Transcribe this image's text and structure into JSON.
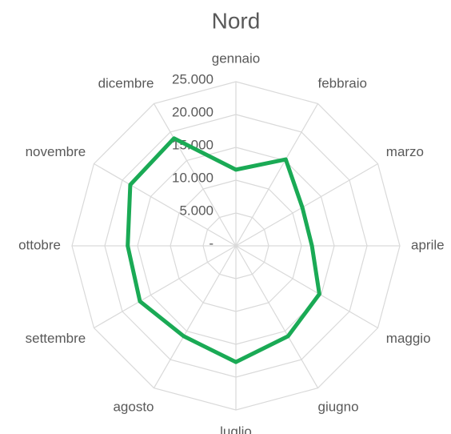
{
  "chart_data": {
    "type": "radar",
    "title": "Nord",
    "categories": [
      "gennaio",
      "febbraio",
      "marzo",
      "aprile",
      "maggio",
      "giugno",
      "luglio",
      "agosto",
      "settembre",
      "ottobre",
      "novembre",
      "dicembre"
    ],
    "series": [
      {
        "name": "Nord",
        "color": "#1aaa55",
        "values": [
          11600,
          15200,
          11700,
          11600,
          14700,
          15900,
          17700,
          15900,
          16900,
          16500,
          18600,
          18900
        ]
      }
    ],
    "ylim": [
      0,
      25000
    ],
    "yticks": [
      {
        "value": 0,
        "label": "-"
      },
      {
        "value": 5000,
        "label": "5.000"
      },
      {
        "value": 10000,
        "label": "10.000"
      },
      {
        "value": 15000,
        "label": "15.000"
      },
      {
        "value": 20000,
        "label": "20.000"
      },
      {
        "value": 25000,
        "label": "25.000"
      }
    ],
    "grid": true
  }
}
